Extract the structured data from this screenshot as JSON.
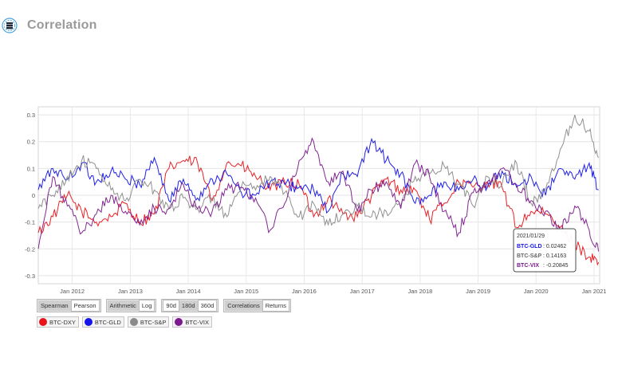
{
  "header": {
    "title": "Correlation",
    "logo_icon": "data-stack-icon"
  },
  "colors": {
    "btc_dxy": "#e8161b",
    "btc_gld": "#1414e8",
    "btc_sp": "#8a8a8a",
    "btc_vix": "#7b1a8c"
  },
  "controls": {
    "method": [
      "Spearman",
      "Pearson"
    ],
    "scale": [
      "Arithmetic",
      "Log"
    ],
    "window": [
      "90d",
      "180d",
      "360d"
    ],
    "view": [
      "Correlations",
      "Returns"
    ]
  },
  "legend": [
    "BTC-DXY",
    "BTC-GLD",
    "BTC-S&P",
    "BTC-VIX"
  ],
  "tooltip": {
    "date": "2021/01/29",
    "rows": [
      {
        "label": "BTC-GLD",
        "value": "0.02462"
      },
      {
        "label": "BTC-S&P",
        "value": "0.14163"
      },
      {
        "label": "BTC-VIX",
        "value": "-0.20845"
      }
    ]
  },
  "chart_data": {
    "type": "line",
    "ylim": [
      -0.33,
      0.33
    ],
    "yticks": [
      0.3,
      0.2,
      0.1,
      0,
      -0.1,
      -0.2,
      -0.3
    ],
    "ytick_labels": [
      "0.3",
      "0.2",
      "0.1",
      "0",
      "-0.1",
      "-0.2",
      "-0.3"
    ],
    "xlim": [
      "2011-06-01",
      "2021-02-05"
    ],
    "xticks": [
      "2012-01-01",
      "2013-01-01",
      "2014-01-01",
      "2015-01-01",
      "2016-01-01",
      "2017-01-01",
      "2018-01-01",
      "2019-01-01",
      "2020-01-01",
      "2021-01-01"
    ],
    "xtick_labels": [
      "Jan 2012",
      "Jan 2013",
      "Jan 2014",
      "Jan 2015",
      "Jan 2016",
      "Jan 2017",
      "Jan 2018",
      "Jan 2019",
      "Jan 2020",
      "Jan 2021"
    ],
    "series": [
      {
        "name": "BTC-DXY",
        "color": "#e8161b",
        "x": [
          "2011-06-01",
          "2011-09-01",
          "2011-12-01",
          "2012-03-01",
          "2012-06-01",
          "2012-09-01",
          "2012-12-01",
          "2013-03-01",
          "2013-06-01",
          "2013-09-01",
          "2013-12-01",
          "2014-03-01",
          "2014-06-01",
          "2014-09-01",
          "2014-12-01",
          "2015-03-01",
          "2015-06-01",
          "2015-09-01",
          "2015-12-01",
          "2016-03-01",
          "2016-06-01",
          "2016-09-01",
          "2016-12-01",
          "2017-03-01",
          "2017-06-01",
          "2017-09-01",
          "2017-12-01",
          "2018-03-01",
          "2018-06-01",
          "2018-09-01",
          "2018-12-01",
          "2019-03-01",
          "2019-06-01",
          "2019-09-01",
          "2019-12-01",
          "2020-03-01",
          "2020-06-01",
          "2020-09-01",
          "2020-12-01",
          "2021-01-29"
        ],
        "y": [
          -0.14,
          -0.08,
          0.0,
          -0.06,
          -0.1,
          -0.08,
          -0.03,
          -0.1,
          -0.07,
          0.1,
          0.13,
          0.12,
          -0.02,
          0.12,
          0.11,
          0.07,
          0.02,
          0.05,
          0.04,
          -0.08,
          -0.01,
          -0.07,
          -0.08,
          0.0,
          0.06,
          0.02,
          0.02,
          -0.09,
          -0.03,
          0.05,
          0.03,
          0.05,
          0.03,
          -0.12,
          -0.06,
          -0.07,
          -0.12,
          -0.18,
          -0.23,
          -0.25
        ]
      },
      {
        "name": "BTC-GLD",
        "color": "#1414e8",
        "x": [
          "2011-06-01",
          "2011-09-01",
          "2011-12-01",
          "2012-03-01",
          "2012-06-01",
          "2012-09-01",
          "2012-12-01",
          "2013-03-01",
          "2013-06-01",
          "2013-09-01",
          "2013-12-01",
          "2014-03-01",
          "2014-06-01",
          "2014-09-01",
          "2014-12-01",
          "2015-03-01",
          "2015-06-01",
          "2015-09-01",
          "2015-12-01",
          "2016-03-01",
          "2016-06-01",
          "2016-09-01",
          "2016-12-01",
          "2017-03-01",
          "2017-06-01",
          "2017-09-01",
          "2017-12-01",
          "2018-03-01",
          "2018-06-01",
          "2018-09-01",
          "2018-12-01",
          "2019-03-01",
          "2019-06-01",
          "2019-09-01",
          "2019-12-01",
          "2020-03-01",
          "2020-06-01",
          "2020-09-01",
          "2020-12-01",
          "2021-01-29"
        ],
        "y": [
          0.02,
          0.1,
          0.06,
          0.12,
          0.05,
          0.09,
          0.06,
          0.04,
          0.14,
          -0.02,
          0.06,
          -0.01,
          0.06,
          0.08,
          0.01,
          0.0,
          0.05,
          0.04,
          0.03,
          0.02,
          -0.06,
          0.08,
          0.07,
          0.21,
          0.13,
          0.08,
          -0.03,
          0.0,
          0.05,
          0.02,
          0.06,
          0.03,
          0.09,
          0.03,
          0.07,
          0.0,
          0.1,
          0.06,
          0.12,
          0.02
        ]
      },
      {
        "name": "BTC-S&P",
        "color": "#8a8a8a",
        "x": [
          "2011-06-01",
          "2011-09-01",
          "2011-12-01",
          "2012-03-01",
          "2012-06-01",
          "2012-09-01",
          "2012-12-01",
          "2013-03-01",
          "2013-06-01",
          "2013-09-01",
          "2013-12-01",
          "2014-03-01",
          "2014-06-01",
          "2014-09-01",
          "2014-12-01",
          "2015-03-01",
          "2015-06-01",
          "2015-09-01",
          "2015-12-01",
          "2016-03-01",
          "2016-06-01",
          "2016-09-01",
          "2016-12-01",
          "2017-03-01",
          "2017-06-01",
          "2017-09-01",
          "2017-12-01",
          "2018-03-01",
          "2018-06-01",
          "2018-09-01",
          "2018-12-01",
          "2019-03-01",
          "2019-06-01",
          "2019-09-01",
          "2019-12-01",
          "2020-03-01",
          "2020-06-01",
          "2020-09-01",
          "2020-12-01",
          "2021-01-29"
        ],
        "y": [
          -0.05,
          0.0,
          0.07,
          0.13,
          0.1,
          0.02,
          -0.02,
          0.06,
          0.02,
          -0.05,
          -0.01,
          -0.05,
          -0.01,
          -0.08,
          0.03,
          0.02,
          0.07,
          0.01,
          -0.08,
          -0.03,
          -0.11,
          -0.07,
          -0.04,
          -0.08,
          -0.06,
          -0.04,
          0.07,
          0.08,
          0.11,
          0.04,
          -0.04,
          0.07,
          0.04,
          0.12,
          -0.03,
          0.02,
          0.17,
          0.3,
          0.24,
          0.14
        ]
      },
      {
        "name": "BTC-VIX",
        "color": "#7b1a8c",
        "x": [
          "2011-06-01",
          "2011-09-01",
          "2011-12-01",
          "2012-03-01",
          "2012-06-01",
          "2012-09-01",
          "2012-12-01",
          "2013-03-01",
          "2013-06-01",
          "2013-09-01",
          "2013-12-01",
          "2014-03-01",
          "2014-06-01",
          "2014-09-01",
          "2014-12-01",
          "2015-03-01",
          "2015-06-01",
          "2015-09-01",
          "2015-12-01",
          "2016-03-01",
          "2016-06-01",
          "2016-09-01",
          "2016-12-01",
          "2017-03-01",
          "2017-06-01",
          "2017-09-01",
          "2017-12-01",
          "2018-03-01",
          "2018-06-01",
          "2018-09-01",
          "2018-12-01",
          "2019-03-01",
          "2019-06-01",
          "2019-09-01",
          "2019-12-01",
          "2020-03-01",
          "2020-06-01",
          "2020-09-01",
          "2020-12-01",
          "2021-01-29"
        ],
        "y": [
          -0.2,
          0.07,
          -0.04,
          -0.14,
          -0.07,
          0.0,
          -0.06,
          -0.11,
          -0.05,
          -0.05,
          0.04,
          -0.05,
          -0.06,
          0.02,
          0.03,
          -0.01,
          -0.13,
          -0.03,
          0.13,
          0.2,
          0.05,
          0.09,
          -0.06,
          0.02,
          0.05,
          -0.05,
          0.12,
          0.07,
          -0.06,
          -0.14,
          0.01,
          0.05,
          0.1,
          0.04,
          -0.02,
          -0.06,
          -0.13,
          -0.04,
          -0.13,
          -0.21
        ]
      }
    ]
  }
}
